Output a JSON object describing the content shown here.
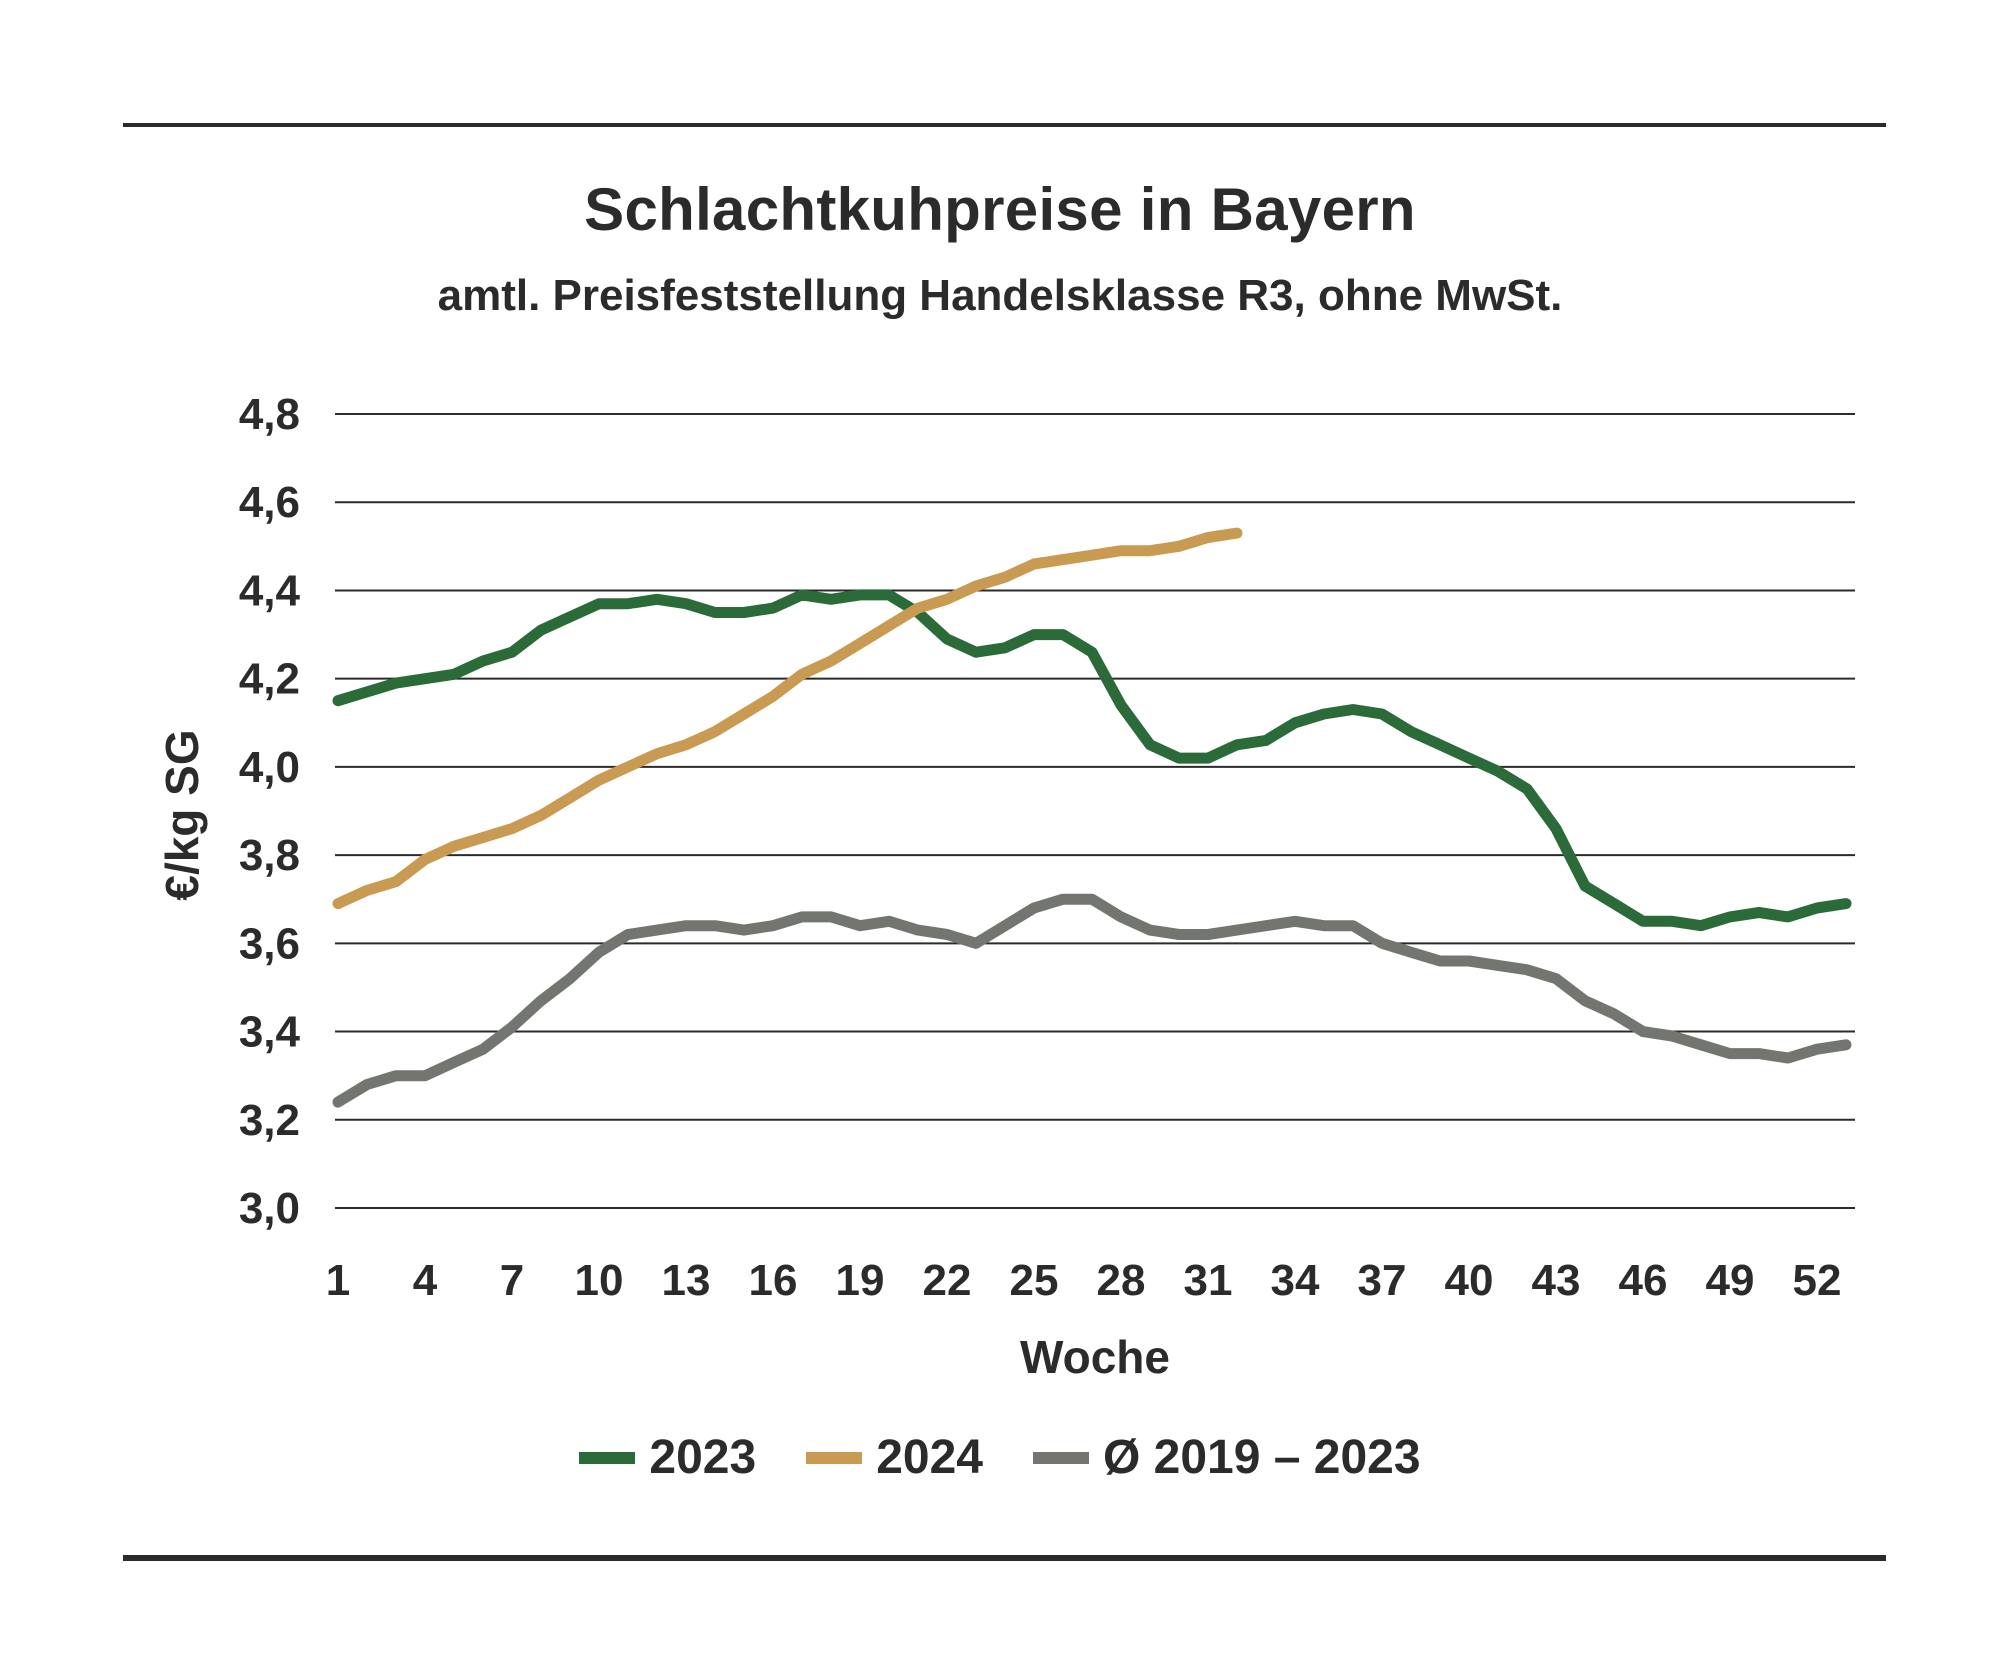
{
  "title": "Schlachtkuhpreise in Bayern",
  "subtitle": "amtl. Preisfeststellung Handelsklasse R3, ohne MwSt.",
  "colors": {
    "s2023": "#2b6b3a",
    "s2024": "#c99a52",
    "avg": "#737670",
    "grid": "#2b2b2b",
    "text": "#2b2b2b"
  },
  "chart_data": {
    "type": "line",
    "title": "Schlachtkuhpreise in Bayern",
    "subtitle": "amtl. Preisfeststellung Handelsklasse R3, ohne MwSt.",
    "xlabel": "Woche",
    "ylabel": "€/kg SG",
    "ylim": [
      3.0,
      4.8
    ],
    "xlim": [
      1,
      53
    ],
    "y_ticks": [
      "3,0",
      "3,2",
      "3,4",
      "3,6",
      "3,8",
      "4,0",
      "4,2",
      "4,4",
      "4,6",
      "4,8"
    ],
    "y_tick_values": [
      3.0,
      3.2,
      3.4,
      3.6,
      3.8,
      4.0,
      4.2,
      4.4,
      4.6,
      4.8
    ],
    "x_ticks": [
      "1",
      "4",
      "7",
      "10",
      "13",
      "16",
      "19",
      "22",
      "25",
      "28",
      "31",
      "34",
      "37",
      "40",
      "43",
      "46",
      "49",
      "52"
    ],
    "x_tick_values": [
      1,
      4,
      7,
      10,
      13,
      16,
      19,
      22,
      25,
      28,
      31,
      34,
      37,
      40,
      43,
      46,
      49,
      52
    ],
    "grid": "horizontal",
    "legend_position": "bottom-center",
    "series": [
      {
        "name": "2023",
        "color": "#2b6b3a",
        "x": [
          1,
          2,
          3,
          4,
          5,
          6,
          7,
          8,
          9,
          10,
          11,
          12,
          13,
          14,
          15,
          16,
          17,
          18,
          19,
          20,
          21,
          22,
          23,
          24,
          25,
          26,
          27,
          28,
          29,
          30,
          31,
          32,
          33,
          34,
          35,
          36,
          37,
          38,
          39,
          40,
          41,
          42,
          43,
          44,
          45,
          46,
          47,
          48,
          49,
          50,
          51,
          52,
          53
        ],
        "values": [
          4.15,
          4.17,
          4.19,
          4.2,
          4.21,
          4.24,
          4.26,
          4.31,
          4.34,
          4.37,
          4.37,
          4.38,
          4.37,
          4.35,
          4.35,
          4.36,
          4.39,
          4.38,
          4.39,
          4.39,
          4.35,
          4.29,
          4.26,
          4.27,
          4.3,
          4.3,
          4.26,
          4.14,
          4.05,
          4.02,
          4.02,
          4.05,
          4.06,
          4.1,
          4.12,
          4.13,
          4.12,
          4.08,
          4.05,
          4.02,
          3.99,
          3.95,
          3.86,
          3.73,
          3.69,
          3.65,
          3.65,
          3.64,
          3.66,
          3.67,
          3.66,
          3.68,
          3.69
        ]
      },
      {
        "name": "2024",
        "color": "#c99a52",
        "x": [
          1,
          2,
          3,
          4,
          5,
          6,
          7,
          8,
          9,
          10,
          11,
          12,
          13,
          14,
          15,
          16,
          17,
          18,
          19,
          20,
          21,
          22,
          23,
          24,
          25,
          26,
          27,
          28,
          29,
          30,
          31,
          32
        ],
        "values": [
          3.69,
          3.72,
          3.74,
          3.79,
          3.82,
          3.84,
          3.86,
          3.89,
          3.93,
          3.97,
          4.0,
          4.03,
          4.05,
          4.08,
          4.12,
          4.16,
          4.21,
          4.24,
          4.28,
          4.32,
          4.36,
          4.38,
          4.41,
          4.43,
          4.46,
          4.47,
          4.48,
          4.49,
          4.49,
          4.5,
          4.52,
          4.53
        ]
      },
      {
        "name": "Ø 2019 – 2023",
        "color": "#737670",
        "x": [
          1,
          2,
          3,
          4,
          5,
          6,
          7,
          8,
          9,
          10,
          11,
          12,
          13,
          14,
          15,
          16,
          17,
          18,
          19,
          20,
          21,
          22,
          23,
          24,
          25,
          26,
          27,
          28,
          29,
          30,
          31,
          32,
          33,
          34,
          35,
          36,
          37,
          38,
          39,
          40,
          41,
          42,
          43,
          44,
          45,
          46,
          47,
          48,
          49,
          50,
          51,
          52,
          53
        ],
        "values": [
          3.24,
          3.28,
          3.3,
          3.3,
          3.33,
          3.36,
          3.41,
          3.47,
          3.52,
          3.58,
          3.62,
          3.63,
          3.64,
          3.64,
          3.63,
          3.64,
          3.66,
          3.66,
          3.64,
          3.65,
          3.63,
          3.62,
          3.6,
          3.64,
          3.68,
          3.7,
          3.7,
          3.66,
          3.63,
          3.62,
          3.62,
          3.63,
          3.64,
          3.65,
          3.64,
          3.64,
          3.6,
          3.58,
          3.56,
          3.56,
          3.55,
          3.54,
          3.52,
          3.47,
          3.44,
          3.4,
          3.39,
          3.37,
          3.35,
          3.35,
          3.34,
          3.36,
          3.37
        ]
      }
    ]
  }
}
